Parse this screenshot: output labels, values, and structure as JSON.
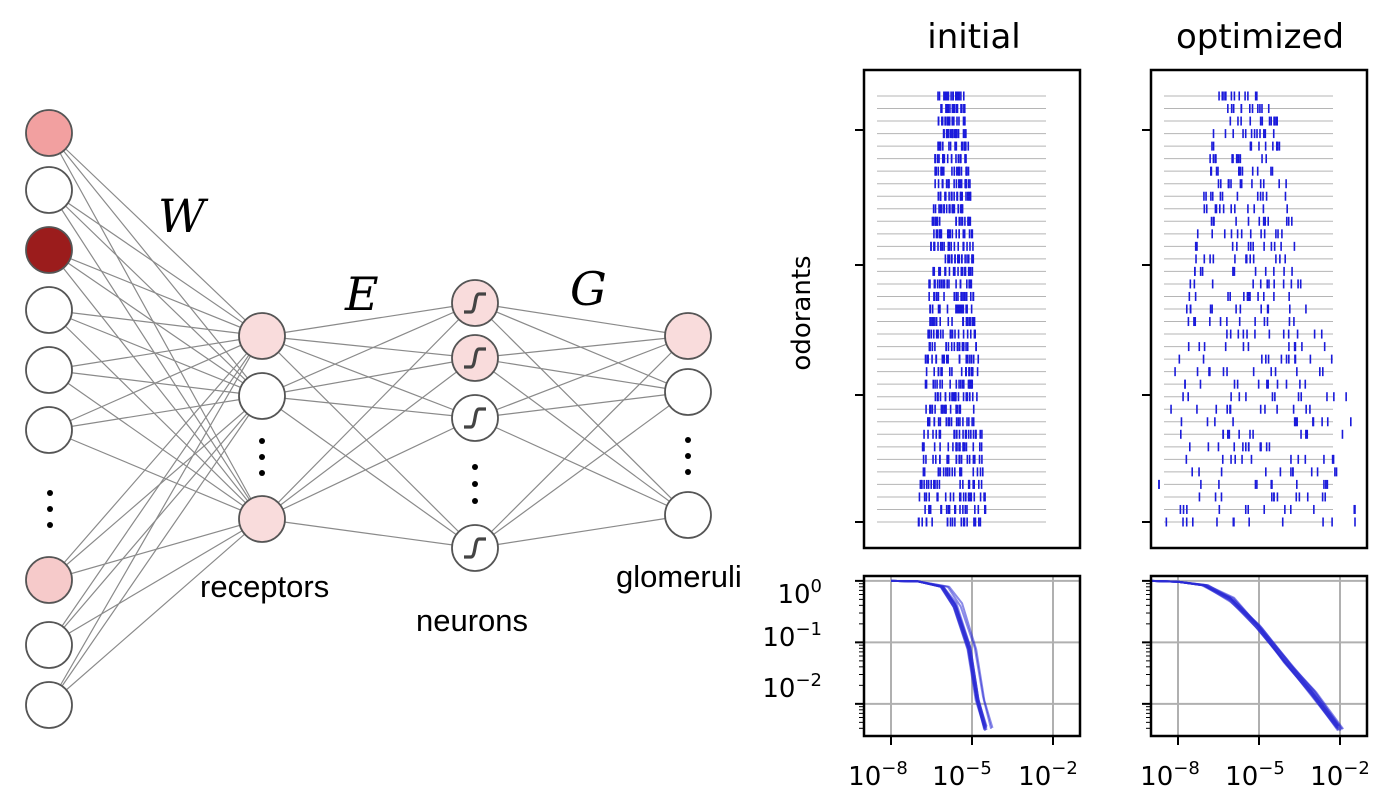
{
  "network": {
    "labels": {
      "W": "W",
      "E": "E",
      "G": "G",
      "receptors": "receptors",
      "neurons": "neurons",
      "glomeruli": "glomeruli"
    },
    "input_fills": [
      "#f2a0a0",
      "#ffffff",
      "#9b1c1c",
      "#ffffff",
      "#ffffff",
      "#ffffff",
      "#f6caca",
      "#ffffff",
      "#ffffff"
    ],
    "receptor_fills": [
      "#f9dcdc",
      "#ffffff",
      "#f9dcdc"
    ],
    "neuron_fills": [
      "#f9dcdc",
      "#f9dcdc",
      "#ffffff",
      "#ffffff"
    ],
    "glomeruli_fills": [
      "#f9dcdc",
      "#ffffff",
      "#ffffff"
    ],
    "colors": {
      "edge": "#8a8a8a",
      "node_stroke": "#555555",
      "ellipsis": "#000000"
    }
  },
  "raster": {
    "titles": {
      "initial": "initial",
      "optimized": "optimized"
    },
    "ylabel": "odorants",
    "n_rows": 35,
    "colors": {
      "tick": "#1a1adb",
      "row_line": "#b5b5b5"
    }
  },
  "ccdf": {
    "x_tick_labels": [
      "10^-8",
      "10^-5",
      "10^-2"
    ],
    "y_tick_labels": [
      "10^0",
      "10^-1",
      "10^-2"
    ],
    "colors": {
      "curve": "#2b2bd6",
      "grid": "#b0b0b0"
    }
  },
  "chart_data": [
    {
      "type": "scatter",
      "title": "initial",
      "ylabel": "odorants",
      "description_rows": 35,
      "xscale": "log"
    },
    {
      "type": "scatter",
      "title": "optimized",
      "description_rows": 35,
      "xscale": "log"
    },
    {
      "type": "line",
      "xscale": "log",
      "yscale": "log",
      "xlim": [
        1e-09,
        0.1
      ],
      "ylim": [
        0.003,
        1.2
      ],
      "xticks": [
        "10^-8",
        "10^-5",
        "10^-2"
      ],
      "yticks": [
        "10^0",
        "10^-1",
        "10^-2"
      ],
      "grid": true,
      "series": [
        {
          "x": [
            1e-08,
            1e-07,
            1e-06,
            3e-06,
            1e-05,
            2e-05,
            4e-05
          ],
          "y": [
            1.0,
            0.98,
            0.8,
            0.4,
            0.08,
            0.012,
            0.004
          ]
        }
      ]
    },
    {
      "type": "line",
      "xscale": "log",
      "yscale": "log",
      "xlim": [
        1e-09,
        0.1
      ],
      "ylim": [
        0.003,
        1.2
      ],
      "xticks": [
        "10^-8",
        "10^-5",
        "10^-2"
      ],
      "grid": true,
      "series": [
        {
          "x": [
            1e-09,
            1e-08,
            1e-07,
            1e-06,
            1e-05,
            0.0001,
            0.001,
            0.01
          ],
          "y": [
            1.0,
            0.97,
            0.85,
            0.5,
            0.18,
            0.05,
            0.015,
            0.004
          ]
        }
      ]
    }
  ]
}
